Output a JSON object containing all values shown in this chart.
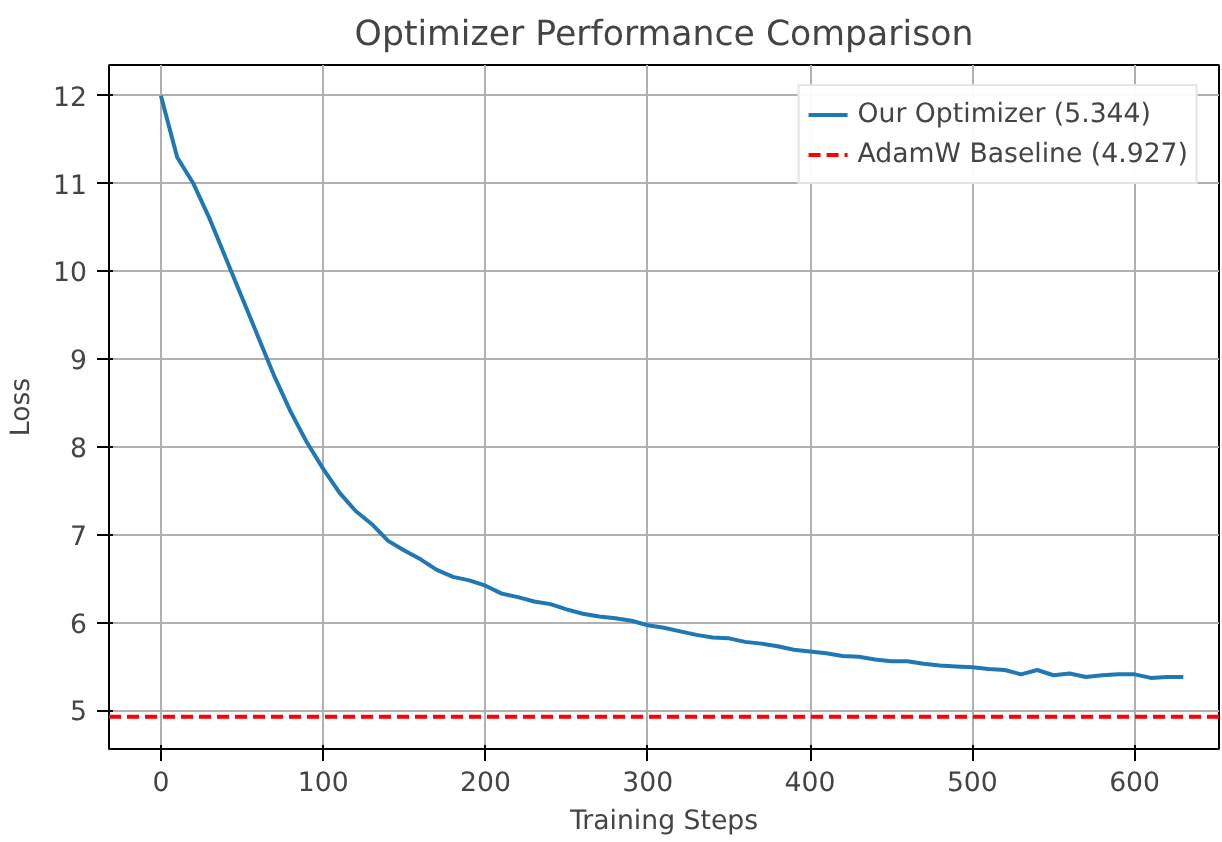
{
  "chart_data": {
    "type": "line",
    "title": "Optimizer Performance Comparison",
    "xlabel": "Training Steps",
    "ylabel": "Loss",
    "x": [
      0,
      10,
      20,
      30,
      40,
      50,
      60,
      70,
      80,
      90,
      100,
      110,
      120,
      130,
      140,
      150,
      160,
      170,
      180,
      190,
      200,
      210,
      220,
      230,
      240,
      250,
      260,
      270,
      280,
      290,
      300,
      310,
      320,
      330,
      340,
      350,
      360,
      370,
      380,
      390,
      400,
      410,
      420,
      430,
      440,
      450,
      460,
      470,
      480,
      490,
      500,
      510,
      520,
      530,
      540,
      550,
      560,
      570,
      580,
      590,
      600,
      610,
      620,
      630
    ],
    "series": [
      {
        "name": "Our Optimizer (5.344)",
        "color": "#1f77b4",
        "values": [
          12.0,
          11.3,
          11.0,
          10.6,
          10.15,
          9.7,
          9.25,
          8.8,
          8.4,
          8.05,
          7.75,
          7.48,
          7.27,
          7.12,
          6.93,
          6.82,
          6.72,
          6.6,
          6.52,
          6.48,
          6.42,
          6.33,
          6.29,
          6.24,
          6.21,
          6.15,
          6.1,
          6.07,
          6.05,
          6.02,
          5.97,
          5.94,
          5.9,
          5.86,
          5.83,
          5.82,
          5.78,
          5.76,
          5.73,
          5.69,
          5.67,
          5.65,
          5.62,
          5.61,
          5.58,
          5.56,
          5.56,
          5.53,
          5.51,
          5.5,
          5.49,
          5.47,
          5.46,
          5.41,
          5.46,
          5.4,
          5.42,
          5.38,
          5.4,
          5.41,
          5.41,
          5.37,
          5.38,
          5.38
        ]
      }
    ],
    "ref_lines": [
      {
        "axis": "y",
        "value": 4.927,
        "label": "AdamW Baseline (4.927)",
        "color": "#ff0000",
        "line_style": "dashed"
      }
    ],
    "xlim": [
      -32,
      652
    ],
    "ylim": [
      4.56,
      12.35
    ],
    "xticks": [
      0,
      100,
      200,
      300,
      400,
      500,
      600
    ],
    "yticks": [
      5,
      6,
      7,
      8,
      9,
      10,
      11,
      12
    ],
    "grid": true,
    "legend": "top right"
  }
}
